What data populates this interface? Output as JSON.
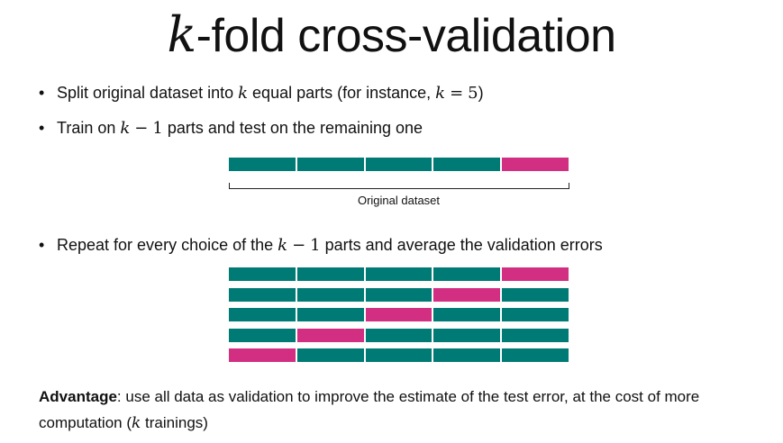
{
  "title": {
    "var": "k",
    "text": "-fold cross-validation"
  },
  "bullets": [
    {
      "dot": "•",
      "before": "Split original dataset into ",
      "math1": "k",
      "mid": " equal parts (for instance, ",
      "math2_var": "k",
      "math2_op": "=",
      "math2_num": "5",
      "after": ")"
    },
    {
      "dot": "•",
      "before": "Train on ",
      "math_var": "k",
      "math_op": "−",
      "math_num": "1",
      "after": " parts and test on the remaining one"
    },
    {
      "dot": "•",
      "before": "Repeat for every choice of the ",
      "math_var": "k",
      "math_op": "−",
      "math_num": "1",
      "after": " parts and average the validation errors"
    }
  ],
  "diagram": {
    "colors": {
      "train": "#007a74",
      "test": "#d22f82"
    },
    "original_label": "Original dataset",
    "single_row": [
      "train",
      "train",
      "train",
      "train",
      "test"
    ],
    "folds": [
      [
        "train",
        "train",
        "train",
        "train",
        "test"
      ],
      [
        "train",
        "train",
        "train",
        "test",
        "train"
      ],
      [
        "train",
        "train",
        "test",
        "train",
        "train"
      ],
      [
        "train",
        "test",
        "train",
        "train",
        "train"
      ],
      [
        "test",
        "train",
        "train",
        "train",
        "train"
      ]
    ]
  },
  "advantage": {
    "label": "Advantage",
    "text": ": use all data as validation to improve the estimate of the test error, at the cost of more computation (",
    "math": "k",
    "end": " trainings)"
  }
}
